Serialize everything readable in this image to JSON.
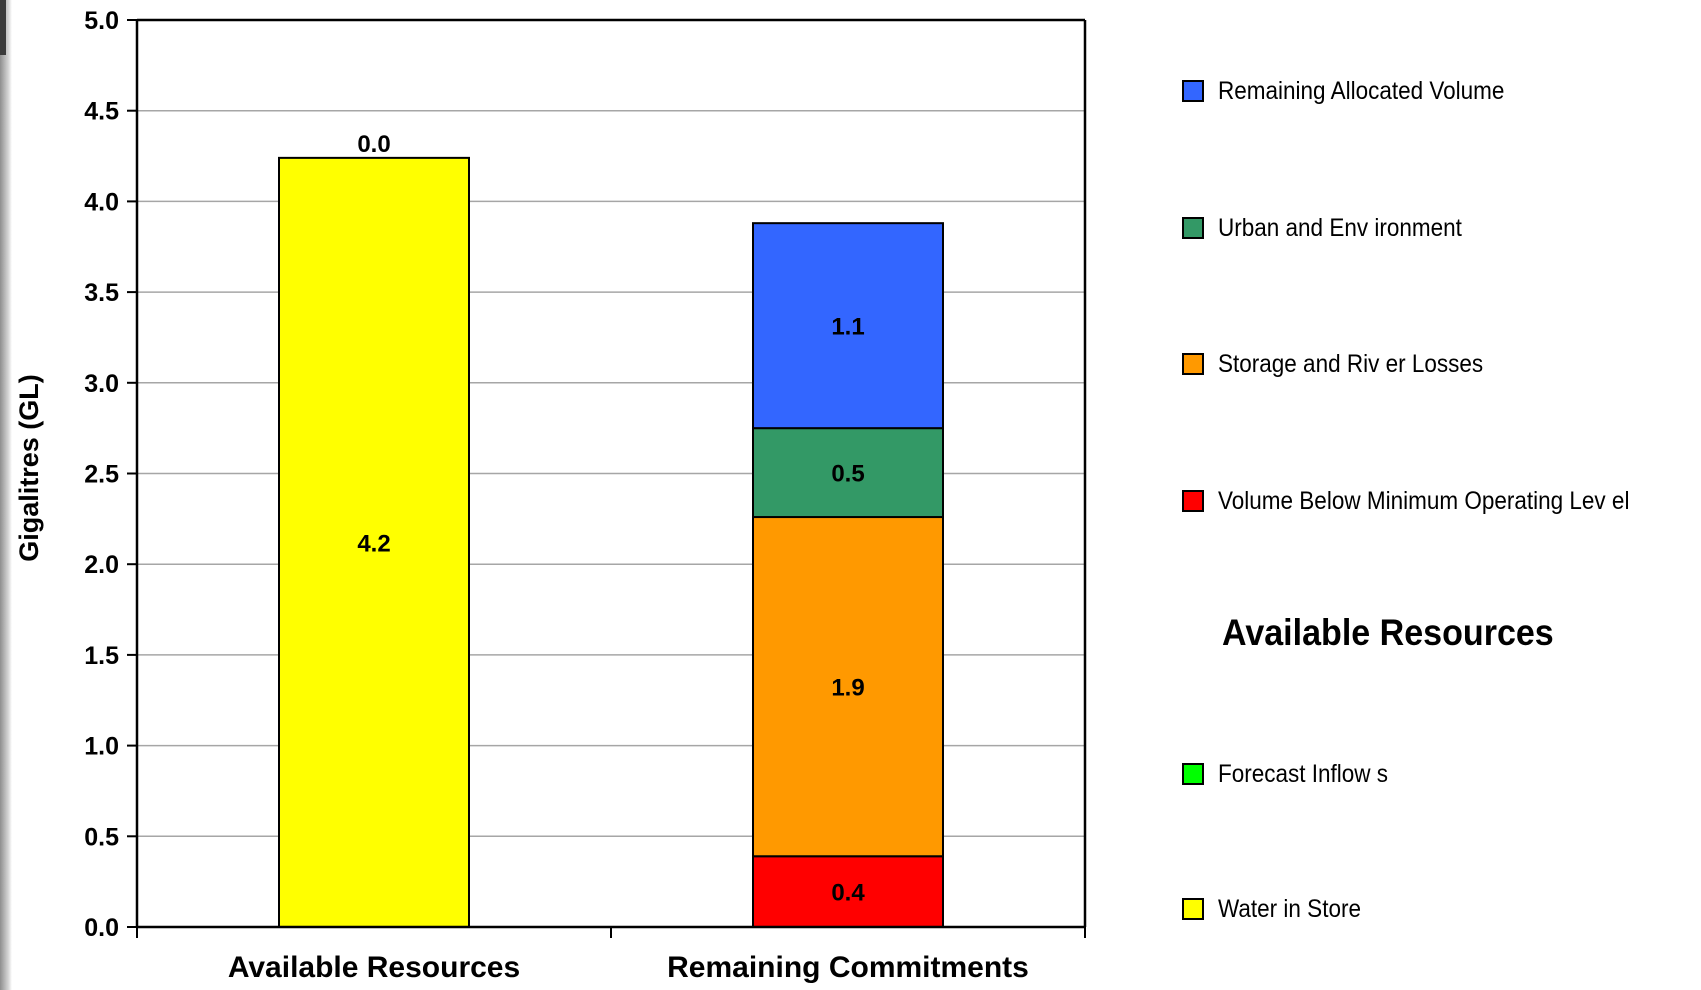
{
  "chart_data": {
    "type": "bar",
    "stacked": true,
    "ylabel": "Gigalitres (GL)",
    "ylim": [
      0,
      5
    ],
    "yticks": [
      "0.0",
      "0.5",
      "1.0",
      "1.5",
      "2.0",
      "2.5",
      "3.0",
      "3.5",
      "4.0",
      "4.5",
      "5.0"
    ],
    "grid": true,
    "legend_position": "right",
    "categories": [
      "Available Resources",
      "Remaining Commitments"
    ],
    "series": [
      {
        "name": "Water in Store",
        "color": "#ffff00",
        "values": [
          4.24,
          0
        ],
        "labels": [
          "4.2",
          ""
        ]
      },
      {
        "name": "Forecast Inflows",
        "color": "#00ff00",
        "values": [
          0.0,
          0
        ],
        "labels": [
          "0.0",
          ""
        ]
      },
      {
        "name": "Volume Below Minimum Operating Level",
        "color": "#ff0000",
        "values": [
          0,
          0.39
        ],
        "labels": [
          "",
          "0.4"
        ]
      },
      {
        "name": "Storage and River Losses",
        "color": "#ff9900",
        "values": [
          0,
          1.87
        ],
        "labels": [
          "",
          "1.9"
        ]
      },
      {
        "name": "Urban and Environment",
        "color": "#339966",
        "values": [
          0,
          0.49
        ],
        "labels": [
          "",
          "0.5"
        ]
      },
      {
        "name": "Remaining Allocated Volume",
        "color": "#3366ff",
        "values": [
          0,
          1.13
        ],
        "labels": [
          "",
          "1.1"
        ]
      }
    ]
  },
  "legend": {
    "items": [
      {
        "label": "Remaining Allocated Volume",
        "color": "#3366ff"
      },
      {
        "label": "Urban and Env ironment",
        "color": "#339966"
      },
      {
        "label": "Storage and Riv er Losses",
        "color": "#ff9900"
      },
      {
        "label": "Volume Below  Minimum Operating Lev el",
        "color": "#ff0000"
      }
    ],
    "heading": "Available Resources",
    "items2": [
      {
        "label": "Forecast Inflow s",
        "color": "#00ff00"
      },
      {
        "label": "Water in Store",
        "color": "#ffff00"
      }
    ]
  }
}
